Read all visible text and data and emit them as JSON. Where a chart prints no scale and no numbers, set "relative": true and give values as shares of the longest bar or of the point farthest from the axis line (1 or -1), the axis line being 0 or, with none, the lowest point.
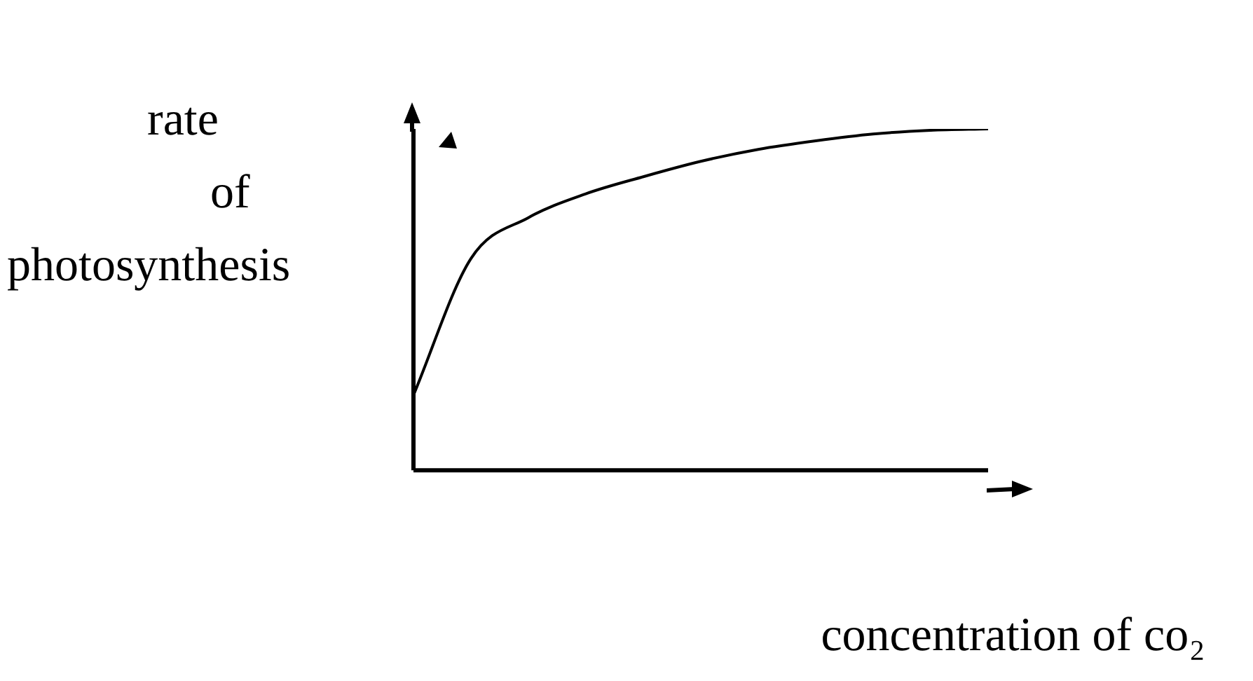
{
  "chart_data": {
    "type": "line",
    "relative": true,
    "xlabel": "concentration of co₂",
    "ylabel": "rate of photosynthesis",
    "categories": [
      null,
      null,
      null,
      null,
      null,
      null,
      null,
      null,
      null,
      null,
      null
    ],
    "series": [
      {
        "color": "#000000",
        "values": [
          0.22,
          0.62,
          0.74,
          0.81,
          0.86,
          0.905,
          0.94,
          0.965,
          0.985,
          0.996,
          1
        ]
      }
    ],
    "marker": "none",
    "line_style": "solid",
    "legend": false
  }
}
